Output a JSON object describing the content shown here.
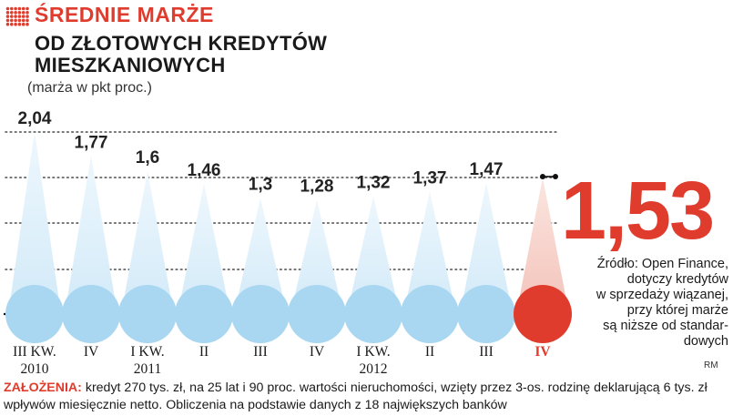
{
  "header": {
    "kicker": "ŚREDNIE MARŻE",
    "title": "OD ZŁOTOWYCH KREDYTÓW\nMIESZKANIOWYCH",
    "subtitle": "(marża w pkt proc.)"
  },
  "highlight": {
    "value": "1,53"
  },
  "source": "Źródło: Open Finance,\ndotyczy kredytów\nw sprzedaży wiązanej,\nprzy której marże\nsą niższe od standar-\ndowych",
  "credit": "RM",
  "footnote": {
    "label": "ZAŁOŻENIA:",
    "text": " kredyt 270 tys. zł, na 25 lat i 90 proc. wartości nieruchomości, wzięty przez 3-os. rodzinę deklarującą 6 tys. zł wpływów miesięcznie netto. Obliczenia na podstawie danych z 18 największych banków"
  },
  "colors": {
    "accent": "#e03c2e",
    "bubble": "#a9d6f0",
    "cone_blue": "#d2eaf8",
    "cone_red": "#f3c2b9"
  },
  "chart_data": {
    "type": "bar",
    "style": "cone bubbles",
    "categories": [
      "III KW. 2010",
      "IV",
      "I KW. 2011",
      "II",
      "III",
      "IV",
      "I KW. 2012",
      "II",
      "III",
      "IV"
    ],
    "x_labels": [
      [
        "III KW.",
        "2010"
      ],
      [
        "IV",
        ""
      ],
      [
        "I KW.",
        "2011"
      ],
      [
        "II",
        ""
      ],
      [
        "III",
        ""
      ],
      [
        "IV",
        ""
      ],
      [
        "I KW.",
        "2012"
      ],
      [
        "II",
        ""
      ],
      [
        "III",
        ""
      ],
      [
        "IV",
        ""
      ]
    ],
    "values": [
      2.04,
      1.77,
      1.6,
      1.46,
      1.3,
      1.28,
      1.32,
      1.37,
      1.47,
      1.53
    ],
    "value_labels": [
      "2,04",
      "1,77",
      "1,6",
      "1,46",
      "1,3",
      "1,28",
      "1,32",
      "1,37",
      "1,47",
      ""
    ],
    "highlight_index": 9,
    "grid": true,
    "ylim": [
      0,
      2.04
    ]
  }
}
